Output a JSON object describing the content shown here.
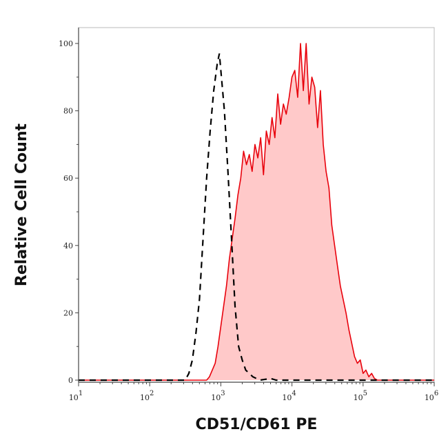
{
  "chart_data": {
    "type": "area",
    "title": "",
    "xlabel": "CD51/CD61 PE",
    "ylabel": "Relative Cell Count",
    "xscale": "log",
    "xlim": [
      10,
      1000000
    ],
    "ylim": [
      0,
      105
    ],
    "xticks": [
      10,
      100,
      1000,
      10000,
      100000,
      1000000
    ],
    "xtick_labels": [
      {
        "base": "10",
        "exp": "1"
      },
      {
        "base": "10",
        "exp": "2"
      },
      {
        "base": "10",
        "exp": "3"
      },
      {
        "base": "10",
        "exp": "4"
      },
      {
        "base": "10",
        "exp": "5"
      },
      {
        "base": "10",
        "exp": "6"
      }
    ],
    "yticks": [
      0,
      20,
      40,
      60,
      80,
      100
    ],
    "ytick_labels": [
      "0",
      "20",
      "40",
      "60",
      "80",
      "100"
    ],
    "grid": false,
    "series": [
      {
        "style": "red solid line with pink fill",
        "line_color": "#e8000b",
        "fill_color": "#ffc9c9",
        "x": [
          10,
          631,
          692,
          759,
          832,
          912,
          1000,
          1096,
          1202,
          1318,
          1445,
          1585,
          1738,
          1905,
          2089,
          2291,
          2512,
          2754,
          3020,
          3311,
          3631,
          3981,
          4365,
          4786,
          5248,
          5754,
          6310,
          6918,
          7586,
          8318,
          9120,
          10000,
          10965,
          12023,
          13183,
          14454,
          15849,
          17378,
          19055,
          20893,
          22909,
          25119,
          27542,
          30200,
          33113,
          36308,
          39811,
          43652,
          47863,
          52481,
          57544,
          63096,
          69183,
          75858,
          83176,
          91201,
          100000,
          109648,
          120226,
          131826,
          144544,
          158489,
          1000000
        ],
        "y": [
          0,
          0,
          1,
          3,
          5,
          10,
          16,
          22,
          28,
          36,
          42,
          48,
          55,
          60,
          68,
          64,
          67,
          62,
          70,
          66,
          72,
          61,
          74,
          70,
          78,
          72,
          85,
          76,
          82,
          79,
          84,
          90,
          92,
          84,
          100,
          86,
          100,
          82,
          90,
          87,
          75,
          86,
          70,
          62,
          57,
          46,
          40,
          34,
          28,
          24,
          20,
          15,
          11,
          7,
          5,
          6,
          2,
          3,
          1,
          2,
          0.5,
          0,
          0
        ]
      },
      {
        "style": "black dashed line",
        "line_color": "#000000",
        "x": [
          10,
          316,
          355,
          398,
          447,
          501,
          562,
          631,
          708,
          794,
          891,
          955,
          1000,
          1122,
          1259,
          1413,
          1585,
          1778,
          1995,
          2239,
          2818,
          3162,
          3548,
          5012,
          6000,
          1000000
        ],
        "y": [
          0,
          0,
          2,
          6,
          14,
          24,
          42,
          60,
          74,
          86,
          94,
          97,
          92,
          80,
          62,
          42,
          22,
          10,
          6,
          3,
          1,
          0.5,
          0,
          0.5,
          0,
          0
        ]
      }
    ]
  }
}
